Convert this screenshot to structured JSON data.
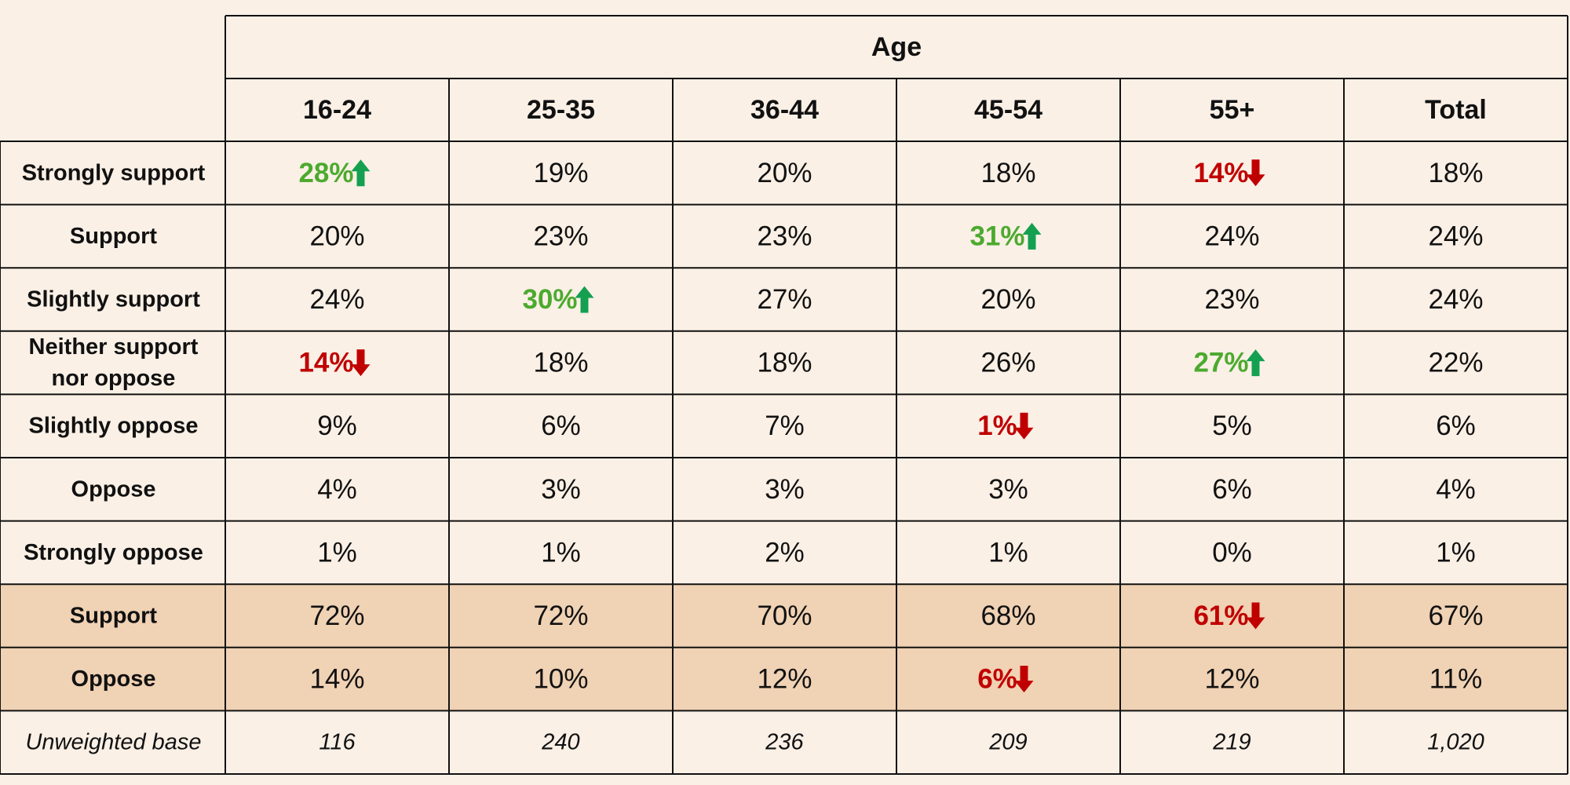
{
  "chart_data": {
    "type": "table",
    "title": "",
    "group_header": "Age",
    "columns": [
      "16-24",
      "25-35",
      "36-44",
      "45-54",
      "55+",
      "Total"
    ],
    "rows": [
      {
        "label": [
          "Strongly support"
        ],
        "cells": [
          {
            "v": "28%",
            "sig": "up"
          },
          {
            "v": "19%"
          },
          {
            "v": "20%"
          },
          {
            "v": "18%"
          },
          {
            "v": "14%",
            "sig": "down"
          },
          {
            "v": "18%"
          }
        ]
      },
      {
        "label": [
          "Support"
        ],
        "cells": [
          {
            "v": "20%"
          },
          {
            "v": "23%"
          },
          {
            "v": "23%"
          },
          {
            "v": "31%",
            "sig": "up"
          },
          {
            "v": "24%"
          },
          {
            "v": "24%"
          }
        ]
      },
      {
        "label": [
          "Slightly support"
        ],
        "cells": [
          {
            "v": "24%"
          },
          {
            "v": "30%",
            "sig": "up"
          },
          {
            "v": "27%"
          },
          {
            "v": "20%"
          },
          {
            "v": "23%"
          },
          {
            "v": "24%"
          }
        ]
      },
      {
        "label": [
          "Neither support",
          "nor oppose"
        ],
        "cells": [
          {
            "v": "14%",
            "sig": "down"
          },
          {
            "v": "18%"
          },
          {
            "v": "18%"
          },
          {
            "v": "26%"
          },
          {
            "v": "27%",
            "sig": "up"
          },
          {
            "v": "22%"
          }
        ]
      },
      {
        "label": [
          "Slightly oppose"
        ],
        "cells": [
          {
            "v": "9%"
          },
          {
            "v": "6%"
          },
          {
            "v": "7%"
          },
          {
            "v": "1%",
            "sig": "down"
          },
          {
            "v": "5%"
          },
          {
            "v": "6%"
          }
        ]
      },
      {
        "label": [
          "Oppose"
        ],
        "cells": [
          {
            "v": "4%"
          },
          {
            "v": "3%"
          },
          {
            "v": "3%"
          },
          {
            "v": "3%"
          },
          {
            "v": "6%"
          },
          {
            "v": "4%"
          }
        ]
      },
      {
        "label": [
          "Strongly oppose"
        ],
        "cells": [
          {
            "v": "1%"
          },
          {
            "v": "1%"
          },
          {
            "v": "2%"
          },
          {
            "v": "1%"
          },
          {
            "v": "0%"
          },
          {
            "v": "1%"
          }
        ]
      },
      {
        "label": [
          "Support"
        ],
        "highlight": true,
        "cells": [
          {
            "v": "72%"
          },
          {
            "v": "72%"
          },
          {
            "v": "70%"
          },
          {
            "v": "68%"
          },
          {
            "v": "61%",
            "sig": "down"
          },
          {
            "v": "67%"
          }
        ]
      },
      {
        "label": [
          "Oppose"
        ],
        "highlight": true,
        "cells": [
          {
            "v": "14%"
          },
          {
            "v": "10%"
          },
          {
            "v": "12%"
          },
          {
            "v": "6%",
            "sig": "down"
          },
          {
            "v": "12%"
          },
          {
            "v": "11%"
          }
        ]
      }
    ],
    "base": {
      "label": "Unweighted base",
      "values": [
        "116",
        "240",
        "236",
        "209",
        "219",
        "1,020"
      ]
    },
    "colors": {
      "background": "#faf0e6",
      "highlight_row": "#f0d2b4",
      "grid": "#111111",
      "up_text": "#4caa2e",
      "up_arrow": "#14a050",
      "down_text": "#c00000",
      "down_arrow": "#c00000"
    }
  }
}
